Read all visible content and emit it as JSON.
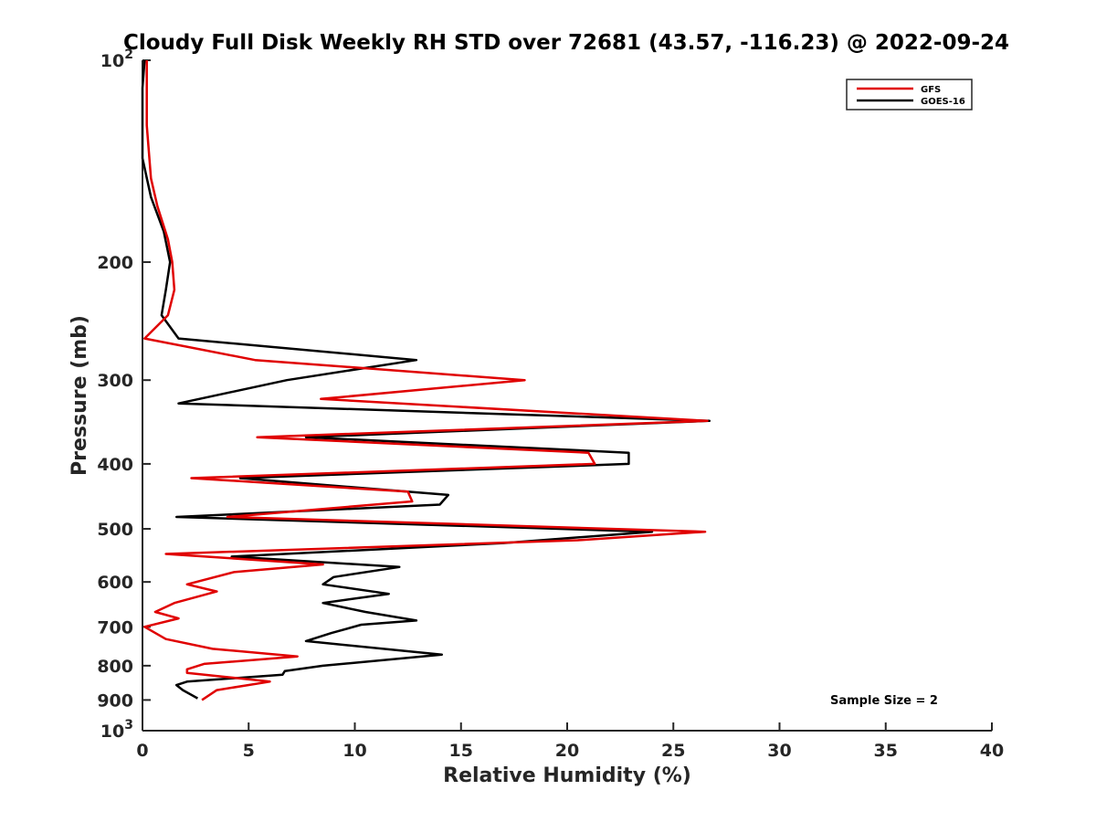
{
  "chart_data": {
    "type": "line",
    "title": "Cloudy Full Disk Weekly RH STD over 72681 (43.57, -116.23) @ 2022-09-24",
    "xlabel": "Relative Humidity (%)",
    "ylabel": "Pressure (mb)",
    "xlim": [
      0,
      40
    ],
    "ylim": [
      100,
      1000
    ],
    "y_scale": "log",
    "y_reversed": true,
    "x_ticks": [
      "0",
      "5",
      "10",
      "15",
      "20",
      "25",
      "30",
      "35",
      "40"
    ],
    "y_ticks": [
      {
        "value": 100,
        "base": "10",
        "exp": "2"
      },
      {
        "value": 200,
        "label": "200"
      },
      {
        "value": 300,
        "label": "300"
      },
      {
        "value": 400,
        "label": "400"
      },
      {
        "value": 500,
        "label": "500"
      },
      {
        "value": 600,
        "label": "600"
      },
      {
        "value": 700,
        "label": "700"
      },
      {
        "value": 800,
        "label": "800"
      },
      {
        "value": 900,
        "label": "900"
      },
      {
        "value": 1000,
        "base": "10",
        "exp": "3"
      }
    ],
    "grid": false,
    "legend_position": "top-right",
    "series": [
      {
        "name": "GFS",
        "color": "#e00000",
        "points": [
          [
            0.2,
            100
          ],
          [
            0.2,
            125
          ],
          [
            0.4,
            150
          ],
          [
            0.7,
            165
          ],
          [
            1.2,
            185
          ],
          [
            1.4,
            200
          ],
          [
            1.5,
            220
          ],
          [
            1.2,
            240
          ],
          [
            0.1,
            260
          ],
          [
            5.3,
            280
          ],
          [
            18.0,
            300
          ],
          [
            8.4,
            320
          ],
          [
            26.6,
            345
          ],
          [
            5.4,
            365
          ],
          [
            21.0,
            385
          ],
          [
            21.3,
            400
          ],
          [
            2.3,
            420
          ],
          [
            12.5,
            440
          ],
          [
            12.7,
            455
          ],
          [
            4.0,
            480
          ],
          [
            26.5,
            505
          ],
          [
            20.5,
            520
          ],
          [
            1.1,
            545
          ],
          [
            8.5,
            565
          ],
          [
            4.3,
            580
          ],
          [
            2.1,
            605
          ],
          [
            3.5,
            620
          ],
          [
            1.5,
            645
          ],
          [
            0.6,
            665
          ],
          [
            1.7,
            680
          ],
          [
            0.1,
            700
          ],
          [
            1.1,
            730
          ],
          [
            3.3,
            755
          ],
          [
            7.3,
            775
          ],
          [
            2.9,
            795
          ],
          [
            2.1,
            810
          ],
          [
            2.1,
            820
          ],
          [
            6.0,
            845
          ],
          [
            3.5,
            870
          ],
          [
            2.8,
            900
          ]
        ]
      },
      {
        "name": "GOES-16",
        "color": "#000000",
        "points": [
          [
            0.1,
            100
          ],
          [
            0.0,
            110
          ],
          [
            0.0,
            140
          ],
          [
            0.4,
            160
          ],
          [
            1.0,
            180
          ],
          [
            1.3,
            200
          ],
          [
            1.1,
            220
          ],
          [
            0.9,
            240
          ],
          [
            1.7,
            260
          ],
          [
            12.9,
            280
          ],
          [
            6.8,
            300
          ],
          [
            1.7,
            325
          ],
          [
            26.7,
            345
          ],
          [
            7.7,
            365
          ],
          [
            22.9,
            385
          ],
          [
            22.9,
            400
          ],
          [
            4.6,
            420
          ],
          [
            14.4,
            445
          ],
          [
            14.0,
            460
          ],
          [
            1.6,
            480
          ],
          [
            24.0,
            505
          ],
          [
            17.0,
            525
          ],
          [
            4.2,
            550
          ],
          [
            12.1,
            570
          ],
          [
            9.0,
            590
          ],
          [
            8.5,
            605
          ],
          [
            11.6,
            625
          ],
          [
            8.5,
            645
          ],
          [
            10.5,
            665
          ],
          [
            12.9,
            685
          ],
          [
            10.3,
            695
          ],
          [
            8.9,
            715
          ],
          [
            7.7,
            735
          ],
          [
            14.1,
            770
          ],
          [
            8.5,
            800
          ],
          [
            6.7,
            815
          ],
          [
            6.6,
            825
          ],
          [
            2.1,
            845
          ],
          [
            1.6,
            855
          ],
          [
            1.9,
            870
          ],
          [
            2.6,
            895
          ]
        ]
      }
    ],
    "legend": [
      "GFS",
      "GOES-16"
    ],
    "annotations": [
      "Sample Size = 2"
    ]
  }
}
